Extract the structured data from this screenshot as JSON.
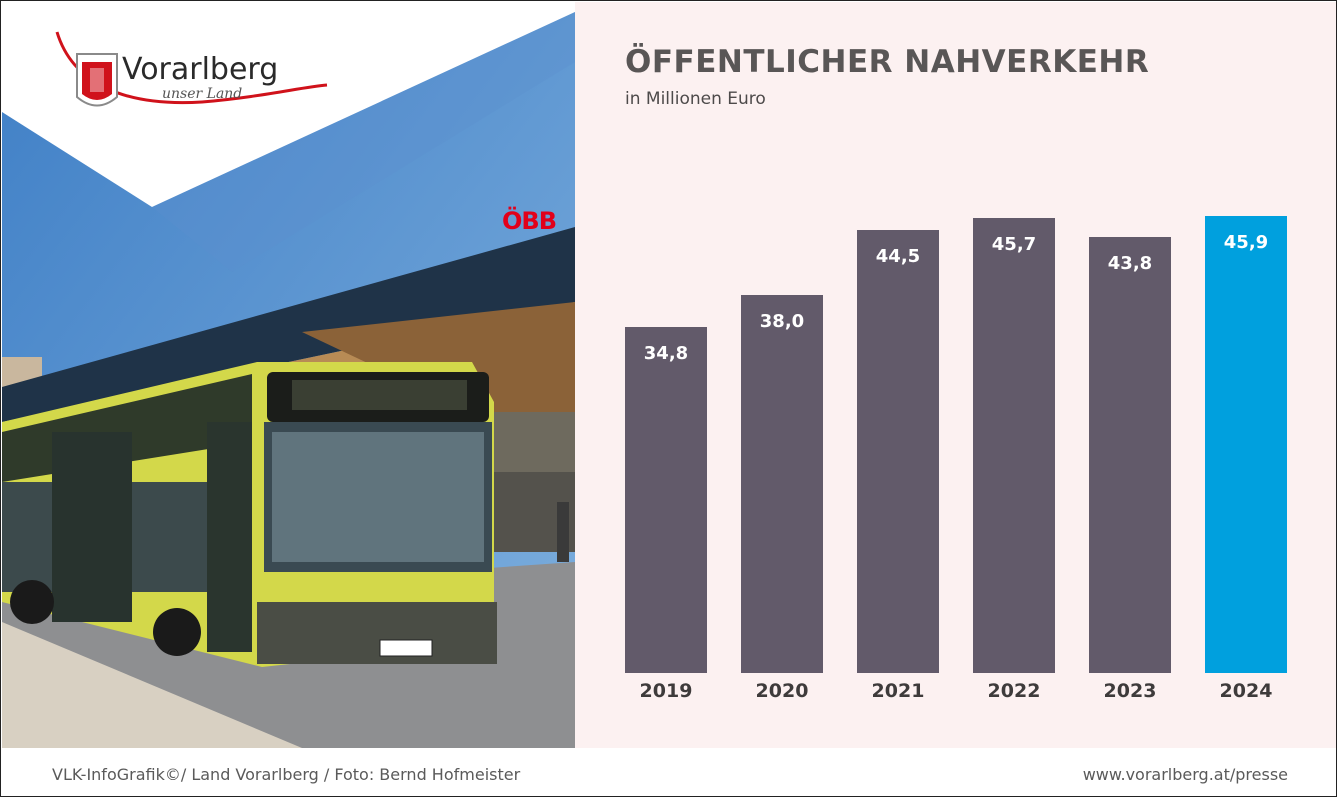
{
  "logo": {
    "name": "Vorarlberg",
    "tagline": "unser Land"
  },
  "photo": {
    "station_sign": "ÖBB"
  },
  "colors": {
    "bar_default": "#625a6a",
    "bar_highlight": "#00a0de",
    "chart_background": "#fcf1f1",
    "logo_red": "#d0121b"
  },
  "chart_data": {
    "type": "bar",
    "title": "ÖFFENTLICHER NAHVERKEHR",
    "subtitle": "in Millionen Euro",
    "categories": [
      "2019",
      "2020",
      "2021",
      "2022",
      "2023",
      "2024"
    ],
    "values": [
      34.8,
      38.0,
      44.5,
      45.7,
      43.8,
      45.9
    ],
    "value_labels": [
      "34,8",
      "38,0",
      "44,5",
      "45,7",
      "43,8",
      "45,9"
    ],
    "highlight_index": 5,
    "grid": false,
    "legend": "none"
  },
  "footer": {
    "credit": "VLK-InfoGrafik©/ Land Vorarlberg / Foto: Bernd Hofmeister",
    "website": "www.vorarlberg.at/presse"
  }
}
